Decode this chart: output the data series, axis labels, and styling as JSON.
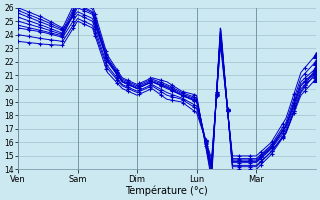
{
  "xlabel": "Température (°c)",
  "ylim": [
    14,
    26
  ],
  "yticks": [
    14,
    15,
    16,
    17,
    18,
    19,
    20,
    21,
    22,
    23,
    24,
    25,
    26
  ],
  "background_color": "#cce8f0",
  "grid_color": "#a0c4d0",
  "line_color": "#0000cc",
  "day_labels": [
    "Ven",
    "Sam",
    "Dim",
    "Lun",
    "Mar"
  ],
  "day_positions": [
    0,
    0.2,
    0.4,
    0.6,
    0.8
  ],
  "xlim": [
    0,
    1.0
  ],
  "n_series": 9,
  "control_points": {
    "x": [
      0.0,
      0.08,
      0.15,
      0.2,
      0.25,
      0.3,
      0.35,
      0.4,
      0.45,
      0.5,
      0.55,
      0.6,
      0.65,
      0.68,
      0.72,
      0.75,
      0.8,
      0.85,
      0.9,
      0.95,
      1.0
    ],
    "base_y": [
      25.0,
      24.5,
      24.0,
      26.0,
      25.5,
      22.0,
      20.5,
      20.0,
      20.5,
      20.0,
      19.5,
      19.0,
      14.0,
      24.0,
      14.5,
      14.5,
      14.5,
      15.5,
      17.0,
      20.0,
      21.0
    ]
  },
  "series_offsets": [
    [
      0.0,
      0.0,
      0.0,
      0.0,
      0.0,
      0.0,
      0.0,
      0.0,
      0.0,
      0.0,
      0.0,
      0.0,
      0.0,
      0.0,
      0.0,
      0.0,
      0.0,
      0.0,
      0.0,
      0.0,
      0.0
    ],
    [
      -0.5,
      -0.3,
      -0.2,
      -0.5,
      -0.5,
      -0.3,
      -0.2,
      -0.2,
      -0.2,
      -0.3,
      -0.2,
      -0.3,
      0.3,
      -0.3,
      0.2,
      0.2,
      0.2,
      0.2,
      0.3,
      0.5,
      0.5
    ],
    [
      0.3,
      0.2,
      0.1,
      0.3,
      0.2,
      0.2,
      0.1,
      0.1,
      0.1,
      0.2,
      0.1,
      0.2,
      -0.3,
      0.3,
      -0.2,
      -0.2,
      -0.2,
      -0.2,
      -0.3,
      -0.5,
      -0.3
    ],
    [
      -1.0,
      -0.8,
      -0.5,
      -0.8,
      -0.8,
      -0.5,
      -0.3,
      -0.3,
      -0.3,
      -0.5,
      -0.3,
      -0.5,
      0.5,
      -0.5,
      0.3,
      0.3,
      0.3,
      0.3,
      0.5,
      0.8,
      1.0
    ],
    [
      0.6,
      0.4,
      0.3,
      0.5,
      0.4,
      0.3,
      0.2,
      0.2,
      0.2,
      0.3,
      0.2,
      0.3,
      -0.5,
      0.5,
      -0.3,
      -0.3,
      -0.3,
      -0.2,
      -0.2,
      -0.3,
      0.2
    ],
    [
      -1.5,
      -1.2,
      -0.8,
      -1.0,
      -1.0,
      -0.8,
      -0.5,
      -0.5,
      -0.5,
      -0.8,
      -0.5,
      -0.8,
      0.8,
      -0.8,
      0.5,
      0.5,
      0.5,
      0.5,
      0.8,
      1.2,
      1.5
    ],
    [
      1.0,
      0.8,
      0.5,
      0.8,
      0.7,
      0.5,
      0.3,
      0.3,
      0.3,
      0.5,
      0.3,
      0.5,
      -0.8,
      0.8,
      -0.5,
      -0.5,
      -0.5,
      -0.4,
      -0.3,
      -0.2,
      0.5
    ],
    [
      -0.3,
      -0.2,
      -0.1,
      0.2,
      0.1,
      0.1,
      0.0,
      0.0,
      0.0,
      0.1,
      0.0,
      0.1,
      0.2,
      0.2,
      0.1,
      0.1,
      0.1,
      0.1,
      0.2,
      0.3,
      0.3
    ],
    [
      0.8,
      0.6,
      0.4,
      -0.3,
      -0.3,
      0.1,
      0.0,
      0.0,
      0.0,
      0.1,
      0.0,
      0.1,
      0.1,
      0.2,
      0.1,
      0.1,
      0.1,
      0.1,
      0.2,
      0.2,
      0.2
    ]
  ]
}
